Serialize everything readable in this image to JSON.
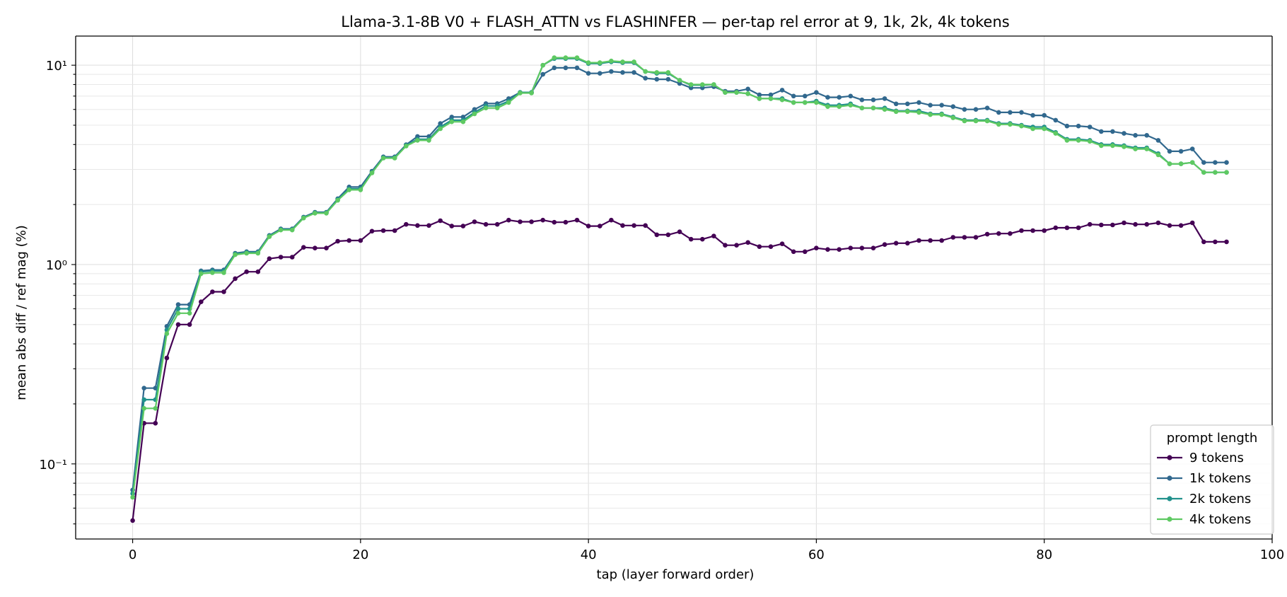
{
  "chart_data": {
    "type": "line",
    "title": "Llama-3.1-8B V0 + FLASH_ATTN vs FLASHINFER — per-tap rel error at 9, 1k, 2k, 4k tokens",
    "xlabel": "tap (layer forward order)",
    "ylabel": "mean abs diff / ref mag (%)",
    "xlim": [
      -5,
      100
    ],
    "ylim": [
      0.042,
      14
    ],
    "yscale": "log",
    "grid": true,
    "x_ticks": [
      0,
      20,
      40,
      60,
      80,
      100
    ],
    "x_tick_labels": [
      "0",
      "20",
      "40",
      "60",
      "80",
      "100"
    ],
    "y_ticks": [
      0.1,
      1,
      10
    ],
    "y_tick_labels": [
      "10⁻¹",
      "10⁰",
      "10¹"
    ],
    "legend": {
      "title": "prompt length",
      "position": "lower right"
    },
    "series": [
      {
        "name": "9 tokens",
        "color": "#440154",
        "x_start": 0,
        "values": [
          0.052,
          0.16,
          0.16,
          0.34,
          0.5,
          0.5,
          0.65,
          0.73,
          0.73,
          0.85,
          0.92,
          0.92,
          1.07,
          1.09,
          1.09,
          1.22,
          1.21,
          1.21,
          1.31,
          1.32,
          1.32,
          1.47,
          1.48,
          1.48,
          1.59,
          1.57,
          1.57,
          1.66,
          1.56,
          1.56,
          1.64,
          1.59,
          1.59,
          1.67,
          1.64,
          1.64,
          1.67,
          1.63,
          1.63,
          1.67,
          1.56,
          1.56,
          1.67,
          1.57,
          1.57,
          1.57,
          1.41,
          1.41,
          1.46,
          1.34,
          1.34,
          1.39,
          1.25,
          1.25,
          1.29,
          1.23,
          1.23,
          1.27,
          1.16,
          1.16,
          1.21,
          1.19,
          1.19,
          1.21,
          1.21,
          1.21,
          1.26,
          1.28,
          1.28,
          1.32,
          1.32,
          1.32,
          1.37,
          1.37,
          1.37,
          1.42,
          1.43,
          1.43,
          1.48,
          1.48,
          1.48,
          1.53,
          1.53,
          1.53,
          1.59,
          1.58,
          1.58,
          1.62,
          1.59,
          1.59,
          1.62,
          1.57,
          1.57,
          1.62,
          1.3,
          1.3,
          1.3
        ]
      },
      {
        "name": "1k tokens",
        "color": "#31688e",
        "x_start": 0,
        "values": [
          0.074,
          0.24,
          0.24,
          0.49,
          0.63,
          0.63,
          0.93,
          0.94,
          0.94,
          1.14,
          1.16,
          1.16,
          1.4,
          1.51,
          1.51,
          1.73,
          1.83,
          1.83,
          2.14,
          2.45,
          2.45,
          2.94,
          3.47,
          3.47,
          3.99,
          4.39,
          4.39,
          5.1,
          5.5,
          5.5,
          6.0,
          6.42,
          6.42,
          6.8,
          7.3,
          7.3,
          9.0,
          9.7,
          9.7,
          9.7,
          9.1,
          9.1,
          9.3,
          9.2,
          9.2,
          8.6,
          8.5,
          8.5,
          8.1,
          7.7,
          7.7,
          7.8,
          7.4,
          7.4,
          7.6,
          7.1,
          7.1,
          7.5,
          7.0,
          7.0,
          7.3,
          6.9,
          6.9,
          7.0,
          6.7,
          6.7,
          6.8,
          6.4,
          6.4,
          6.5,
          6.3,
          6.3,
          6.2,
          6.0,
          6.0,
          6.1,
          5.8,
          5.8,
          5.8,
          5.6,
          5.6,
          5.3,
          4.95,
          4.95,
          4.9,
          4.65,
          4.65,
          4.55,
          4.45,
          4.45,
          4.2,
          3.7,
          3.7,
          3.8,
          3.25,
          3.25,
          3.25
        ]
      },
      {
        "name": "2k tokens",
        "color": "#21918c",
        "x_start": 0,
        "values": [
          0.071,
          0.21,
          0.21,
          0.47,
          0.6,
          0.6,
          0.92,
          0.93,
          0.93,
          1.13,
          1.15,
          1.15,
          1.39,
          1.5,
          1.5,
          1.72,
          1.82,
          1.82,
          2.12,
          2.4,
          2.4,
          2.9,
          3.44,
          3.44,
          3.96,
          4.25,
          4.25,
          4.9,
          5.3,
          5.3,
          5.8,
          6.25,
          6.25,
          6.6,
          7.3,
          7.3,
          10.0,
          10.8,
          10.8,
          10.8,
          10.2,
          10.2,
          10.4,
          10.3,
          10.3,
          9.3,
          9.1,
          9.1,
          8.4,
          7.95,
          7.95,
          8.0,
          7.3,
          7.3,
          7.2,
          6.8,
          6.8,
          6.8,
          6.5,
          6.5,
          6.6,
          6.3,
          6.3,
          6.4,
          6.1,
          6.1,
          6.1,
          5.9,
          5.9,
          5.9,
          5.7,
          5.7,
          5.5,
          5.3,
          5.3,
          5.3,
          5.1,
          5.1,
          5.0,
          4.9,
          4.9,
          4.6,
          4.25,
          4.25,
          4.2,
          4.0,
          4.0,
          3.95,
          3.85,
          3.85,
          3.6,
          3.2,
          3.2,
          3.25,
          2.9,
          2.9,
          2.9
        ]
      },
      {
        "name": "4k tokens",
        "color": "#5ec962",
        "x_start": 0,
        "values": [
          0.068,
          0.19,
          0.19,
          0.45,
          0.57,
          0.57,
          0.9,
          0.91,
          0.91,
          1.12,
          1.14,
          1.14,
          1.38,
          1.49,
          1.49,
          1.71,
          1.81,
          1.81,
          2.1,
          2.37,
          2.37,
          2.88,
          3.42,
          3.42,
          3.93,
          4.2,
          4.2,
          4.8,
          5.2,
          5.2,
          5.7,
          6.1,
          6.1,
          6.5,
          7.25,
          7.25,
          10.0,
          10.9,
          10.9,
          10.9,
          10.3,
          10.3,
          10.5,
          10.4,
          10.4,
          9.3,
          9.2,
          9.2,
          8.4,
          8.0,
          8.0,
          8.0,
          7.3,
          7.3,
          7.2,
          6.8,
          6.8,
          6.7,
          6.5,
          6.5,
          6.5,
          6.2,
          6.2,
          6.3,
          6.1,
          6.1,
          6.0,
          5.85,
          5.85,
          5.8,
          5.65,
          5.65,
          5.45,
          5.25,
          5.25,
          5.25,
          5.05,
          5.05,
          4.95,
          4.8,
          4.8,
          4.55,
          4.2,
          4.2,
          4.15,
          3.95,
          3.95,
          3.9,
          3.8,
          3.8,
          3.55,
          3.2,
          3.2,
          3.25,
          2.9,
          2.9,
          2.9
        ]
      }
    ]
  }
}
